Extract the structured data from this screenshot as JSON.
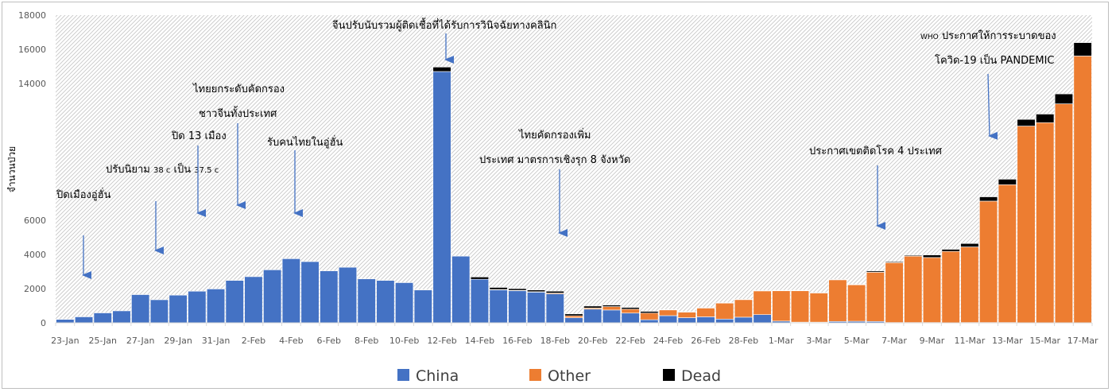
{
  "chart_data": {
    "type": "bar",
    "stacked": true,
    "title": "",
    "ylabel": "จำนวนป่วย",
    "ylim": [
      0,
      18000
    ],
    "yticks": [
      "0",
      "2000",
      "4000",
      "6000",
      "14000",
      "16000",
      "18000"
    ],
    "ytick_values": [
      0,
      2000,
      4000,
      6000,
      14000,
      16000,
      18000
    ],
    "xtick_labels": [
      "23-Jan",
      "25-Jan",
      "27-Jan",
      "29-Jan",
      "31-Jan",
      "2-Feb",
      "4-Feb",
      "6-Feb",
      "8-Feb",
      "10-Feb",
      "12-Feb",
      "14-Feb",
      "16-Feb",
      "18-Feb",
      "20-Feb",
      "22-Feb",
      "24-Feb",
      "26-Feb",
      "28-Feb",
      "1-Mar",
      "3-Mar",
      "5-Mar",
      "7-Mar",
      "9-Mar",
      "11-Mar",
      "13-Mar",
      "15-Mar",
      "17-Mar"
    ],
    "categories": [
      "23-Jan",
      "24-Jan",
      "25-Jan",
      "26-Jan",
      "27-Jan",
      "28-Jan",
      "29-Jan",
      "30-Jan",
      "31-Jan",
      "1-Feb",
      "2-Feb",
      "3-Feb",
      "4-Feb",
      "5-Feb",
      "6-Feb",
      "7-Feb",
      "8-Feb",
      "9-Feb",
      "10-Feb",
      "11-Feb",
      "12-Feb",
      "13-Feb",
      "14-Feb",
      "15-Feb",
      "16-Feb",
      "17-Feb",
      "18-Feb",
      "19-Feb",
      "20-Feb",
      "21-Feb",
      "22-Feb",
      "23-Feb",
      "24-Feb",
      "25-Feb",
      "26-Feb",
      "27-Feb",
      "28-Feb",
      "29-Feb",
      "1-Mar",
      "2-Mar",
      "3-Mar",
      "4-Mar",
      "5-Mar",
      "6-Mar",
      "7-Mar",
      "8-Mar",
      "9-Mar",
      "10-Mar",
      "11-Mar",
      "12-Mar",
      "13-Mar",
      "14-Mar",
      "15-Mar",
      "16-Mar",
      "17-Mar"
    ],
    "series": [
      {
        "name": "China",
        "color": "#4472c4",
        "values": [
          200,
          350,
          580,
          700,
          1650,
          1350,
          1620,
          1850,
          1980,
          2480,
          2700,
          3100,
          3750,
          3580,
          3040,
          3250,
          2570,
          2480,
          2350,
          1920,
          14700,
          3900,
          2550,
          1930,
          1880,
          1800,
          1690,
          300,
          800,
          750,
          570,
          180,
          420,
          300,
          350,
          220,
          330,
          480,
          100,
          40,
          40,
          80,
          90,
          80,
          20,
          20,
          20,
          10,
          20,
          20,
          20,
          10,
          10,
          10,
          10
        ]
      },
      {
        "name": "Other",
        "color": "#ed7d31",
        "values": [
          0,
          0,
          0,
          0,
          0,
          0,
          0,
          0,
          0,
          0,
          0,
          0,
          0,
          0,
          0,
          0,
          0,
          0,
          0,
          0,
          0,
          0,
          0,
          20,
          20,
          20,
          50,
          110,
          70,
          200,
          230,
          390,
          350,
          340,
          530,
          950,
          1040,
          1400,
          1780,
          1850,
          1720,
          2450,
          2150,
          2880,
          3500,
          3880,
          3800,
          4170,
          4420,
          7100,
          8060,
          11500,
          11700,
          12800,
          15600
        ]
      },
      {
        "name": "Dead",
        "color": "#000000",
        "values": [
          0,
          0,
          0,
          0,
          0,
          0,
          0,
          0,
          0,
          0,
          0,
          0,
          0,
          0,
          0,
          0,
          0,
          0,
          0,
          30,
          260,
          0,
          130,
          120,
          100,
          100,
          110,
          110,
          110,
          90,
          100,
          100,
          10,
          10,
          10,
          10,
          10,
          10,
          20,
          10,
          10,
          10,
          10,
          70,
          50,
          50,
          150,
          120,
          200,
          250,
          320,
          390,
          500,
          580,
          780
        ]
      }
    ],
    "legend": {
      "placement": "bottom",
      "entries": [
        "China",
        "Other",
        "Dead"
      ]
    },
    "annotations": [
      {
        "text": "ปิดเมืองอู่ฮั่น",
        "target": "24-Jan"
      },
      {
        "text": "ปรับนิยาม 38 c เป็น 37.5 c",
        "target": "28-Jan"
      },
      {
        "text": "ปิด 13 เมือง",
        "target": "30-Jan"
      },
      {
        "text": "ไทยยกระดับคัดกรอง",
        "target": "1-Feb"
      },
      {
        "text": "ชาวจีนทั้งประเทศ",
        "target": "1-Feb"
      },
      {
        "text": "รับคนไทยในอู่ฮั่น",
        "target": "4-Feb"
      },
      {
        "text": "จีนปรับนับรวมผู้ติดเชื้อที่ได้รับการวินิจฉัยทางคลินิก",
        "target": "12-Feb"
      },
      {
        "text": "ไทยคัดกรองเพิ่ม",
        "target": "19-Feb"
      },
      {
        "text": "ประเทศ มาตรการเชิงรุก 8 จังหวัด",
        "target": "19-Feb"
      },
      {
        "text": "ประกาศเขตติดโรค 4 ประเทศ",
        "target": "6-Mar"
      },
      {
        "text": "WHO ประกาศให้การระบาดของ",
        "target": "12-Mar"
      },
      {
        "text": "โควิด-19 เป็น PANDEMIC",
        "target": "12-Mar"
      }
    ]
  }
}
